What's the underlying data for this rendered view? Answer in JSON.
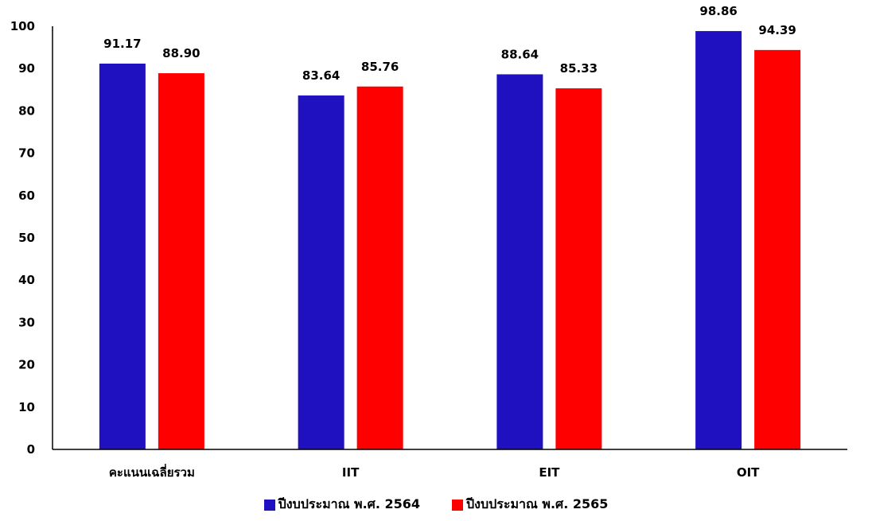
{
  "chart_data": {
    "type": "bar",
    "categories": [
      "คะแนนเฉลี่ยรวม",
      "IIT",
      "EIT",
      "OIT"
    ],
    "series": [
      {
        "name": "ปีงบประมาณ พ.ศ. 2564",
        "values": [
          91.17,
          83.64,
          88.64,
          98.86
        ],
        "color": "#1f10c0"
      },
      {
        "name": "ปีงบประมาณ พ.ศ. 2565",
        "values": [
          88.9,
          85.76,
          85.33,
          94.39
        ],
        "color": "#fe0000"
      }
    ],
    "value_labels": [
      [
        "91.17",
        "83.64",
        "88.64",
        "98.86"
      ],
      [
        "88.90",
        "85.76",
        "85.33",
        "94.39"
      ]
    ],
    "ylim": [
      0,
      100
    ],
    "yticks": [
      "0",
      "10",
      "20",
      "30",
      "40",
      "50",
      "60",
      "70",
      "80",
      "90",
      "100"
    ],
    "title": "",
    "xlabel": "",
    "ylabel": "",
    "grid": false,
    "legend_position": "bottom-center"
  }
}
